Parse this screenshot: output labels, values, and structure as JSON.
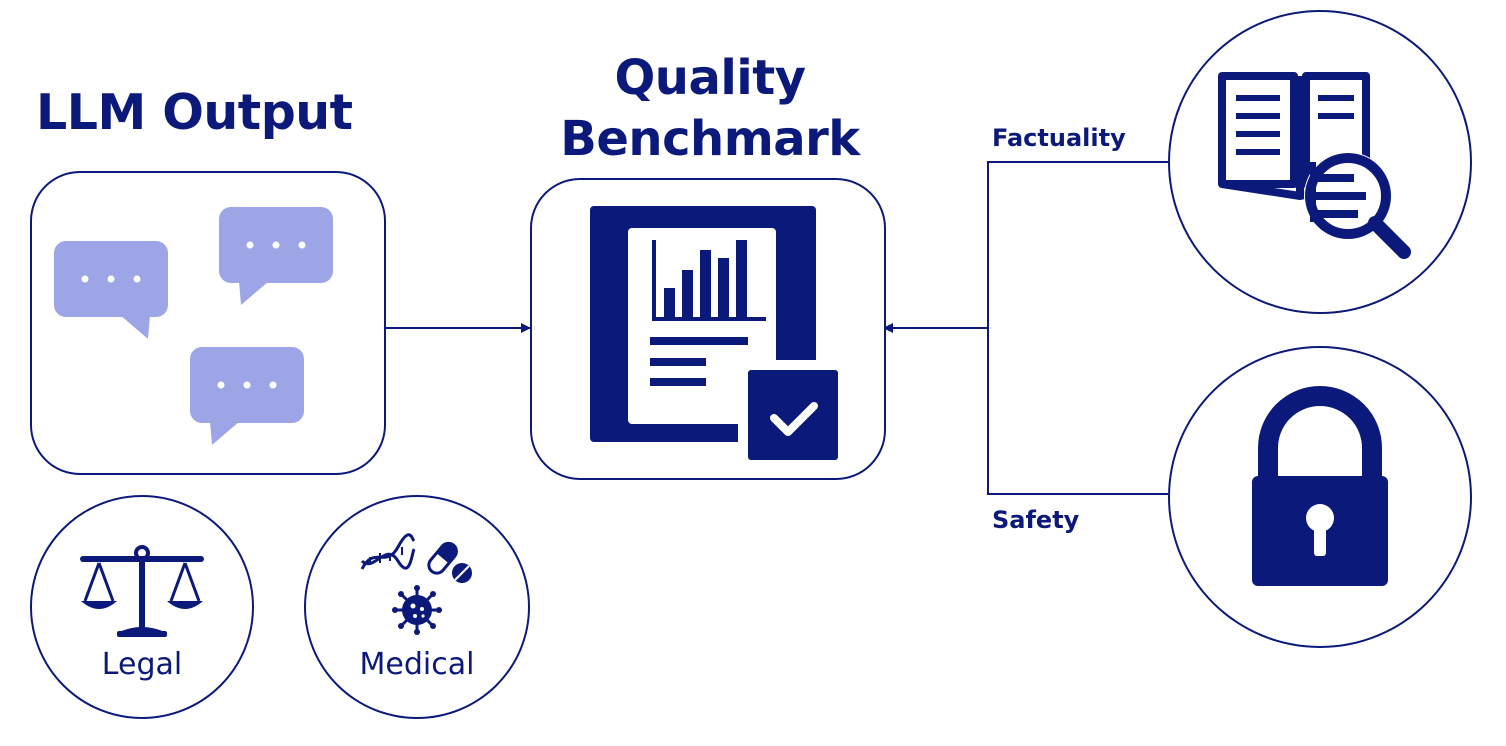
{
  "llm_output": {
    "title": "LLM Output"
  },
  "quality_benchmark": {
    "title_line1": "Quality",
    "title_line2": "Benchmark"
  },
  "domains": {
    "legal": "Legal",
    "medical": "Medical"
  },
  "criteria": {
    "factuality": "Factuality",
    "safety": "Safety"
  },
  "colors": {
    "navy": "#0b1a7a",
    "bubble": "#9da5e6",
    "white": "#ffffff"
  },
  "icons": [
    "chat-bubble-icon",
    "report-chart-icon",
    "checkmark-icon",
    "scales-of-justice-icon",
    "dna-icon",
    "pill-icon",
    "virus-icon",
    "book-magnifier-icon",
    "padlock-icon"
  ]
}
